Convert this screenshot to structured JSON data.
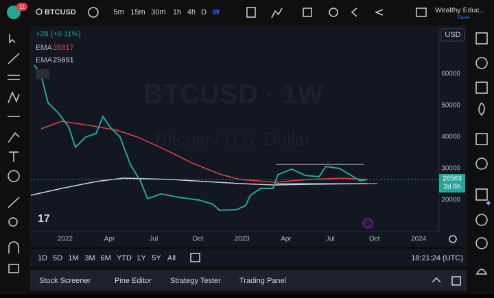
{
  "toolbar": {
    "badge": "11",
    "symbol": "BTCUSD",
    "intervals": [
      "5m",
      "15m",
      "30m",
      "1h",
      "4h",
      "D",
      "W"
    ]
  },
  "account": {
    "name": "Wealthy Educ...",
    "action": "Save"
  },
  "chart": {
    "currency": "USD",
    "change": "+28 (+0.11%)",
    "indicators": [
      {
        "name": "EMA",
        "value": "26817"
      },
      {
        "name": "EMA",
        "value": "25691"
      }
    ],
    "price_axis": [
      "60000",
      "50000",
      "40000",
      "30000",
      "20000"
    ],
    "last_price": "26563",
    "countdown": "2d 6h",
    "time_axis": [
      "2022",
      "Apr",
      "Jul",
      "Oct",
      "2023",
      "Apr",
      "Jul",
      "Oct",
      "2024"
    ],
    "watermark_symbol": "BTCUSD · 1W",
    "watermark_name": "Bitcoin / U.S. Dollar"
  },
  "range_bar": {
    "ranges": [
      "1D",
      "5D",
      "1M",
      "3M",
      "6M",
      "YTD",
      "1Y",
      "5Y",
      "All"
    ],
    "clock": "18:21:24 (UTC)"
  },
  "bottom_panel": {
    "tabs": [
      "Stock Screener",
      "Pine Editor",
      "Strategy Tester",
      "Trading Panel"
    ]
  }
}
